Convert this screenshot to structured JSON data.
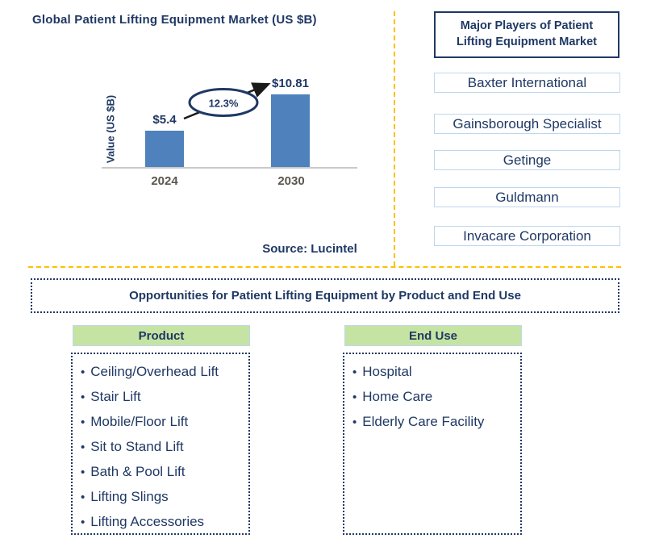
{
  "chart_data": {
    "type": "bar",
    "title": "Global Patient Lifting Equipment Market (US $B)",
    "ylabel": "Value (US $B)",
    "xlabel": "",
    "categories": [
      "2024",
      "2030"
    ],
    "values": [
      5.4,
      10.81
    ],
    "value_labels": [
      "$5.4",
      "$10.81"
    ],
    "annotation": "12.3%",
    "source": "Source: Lucintel",
    "bar_color": "#4f81bd",
    "ylim": [
      0,
      10.81
    ],
    "grid": "off",
    "legend": "none"
  },
  "major_players": {
    "title": "Major Players of Patient Lifting Equipment Market",
    "companies": [
      "Baxter International",
      "Gainsborough Specialist",
      "Getinge",
      "Guldmann",
      "Invacare Corporation"
    ]
  },
  "opportunities": {
    "title": "Opportunities for Patient Lifting Equipment by Product and End Use",
    "columns": [
      {
        "header": "Product",
        "items": [
          "Ceiling/Overhead Lift",
          "Stair Lift",
          "Mobile/Floor Lift",
          "Sit to Stand Lift",
          "Bath & Pool Lift",
          "Lifting Slings",
          "Lifting Accessories"
        ]
      },
      {
        "header": "End Use",
        "items": [
          "Hospital",
          "Home Care",
          "Elderly Care Facility"
        ]
      }
    ]
  },
  "colors": {
    "navy_text": "#1f3864",
    "bar_blue": "#4f81bd",
    "divider_gold": "#ffc000",
    "light_blue_border": "#bdd7ee",
    "header_green": "#c5e3a2",
    "tick_gray": "#5a564e",
    "axis_gray": "#c9c9c9",
    "arrow_black": "#1a1a1a"
  }
}
